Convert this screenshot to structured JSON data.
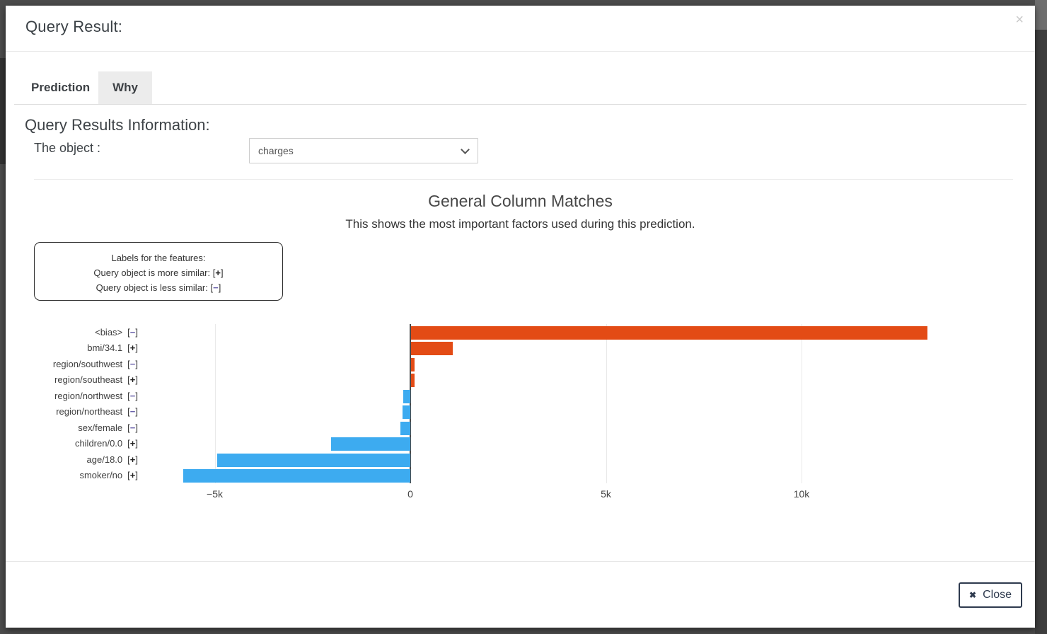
{
  "modal": {
    "title": "Query Result:",
    "close_icon": "×",
    "tabs": [
      {
        "label": "Prediction",
        "active": false
      },
      {
        "label": "Why",
        "active": true
      }
    ],
    "section": {
      "heading": "Query Results Information:",
      "object_label": "The object :",
      "object_value": "charges"
    },
    "footer": {
      "close_icon": "✖",
      "close_label": "Close"
    }
  },
  "chart_data": {
    "type": "bar",
    "orientation": "horizontal",
    "title": "General Column Matches",
    "subtitle": "This shows the most important factors used during this prediction.",
    "legend_box": {
      "title": "Labels for the features:",
      "more_prefix": "Query object is more similar: ",
      "less_prefix": "Query object is less similar: ",
      "plus_sign": "+",
      "minus_sign": "−",
      "bracket_open": "[",
      "bracket_close": "]"
    },
    "features": [
      {
        "label": "<bias>",
        "sign": "−",
        "value": 13200
      },
      {
        "label": "bmi/34.1",
        "sign": "+",
        "value": 1070
      },
      {
        "label": "region/southwest",
        "sign": "−",
        "value": 90
      },
      {
        "label": "region/southeast",
        "sign": "+",
        "value": 85
      },
      {
        "label": "region/northwest",
        "sign": "−",
        "value": -180
      },
      {
        "label": "region/northeast",
        "sign": "−",
        "value": -200
      },
      {
        "label": "sex/female",
        "sign": "−",
        "value": -250
      },
      {
        "label": "children/0.0",
        "sign": "+",
        "value": -2030
      },
      {
        "label": "age/18.0",
        "sign": "+",
        "value": -4930
      },
      {
        "label": "smoker/no",
        "sign": "+",
        "value": -5800
      }
    ],
    "xticks": [
      {
        "label": "−5k",
        "value": -5000
      },
      {
        "label": "0",
        "value": 0
      },
      {
        "label": "5k",
        "value": 5000
      },
      {
        "label": "10k",
        "value": 10000
      }
    ],
    "xlim": [
      -6000,
      13600
    ],
    "grid": true,
    "legend_position": "upper-left",
    "colors": {
      "positive_bar": "#e34b15",
      "negative_bar": "#3dabf0",
      "plus_sign": "#222222",
      "minus_sign": "#6b62ab"
    }
  }
}
